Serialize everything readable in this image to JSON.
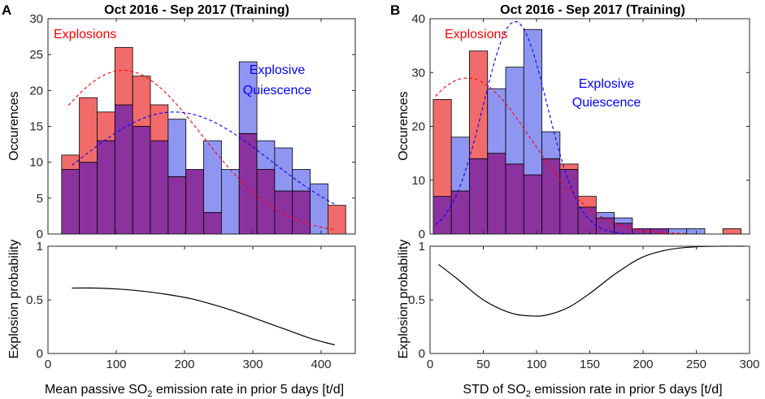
{
  "colors": {
    "explosions": "#ff0000",
    "quiescence": "#0000ff",
    "explosions_fill": "#f26b6b",
    "quiescence_fill": "#8f96f2",
    "overlap_fill": "#8b329f",
    "curve": "#000000"
  },
  "panels": [
    {
      "letter": "A",
      "title": "Oct 2016 - Sep 2017  (Training)",
      "xlabel_pre": "Mean passive SO",
      "xlabel_sub": "2",
      "xlabel_post": " emission rate in prior 5 days [t/d]",
      "ylabel_top": "Occurences",
      "ylabel_bottom": "Explosion probability",
      "legend_explosions": "Explosions",
      "legend_quiescence_1": "Explosive",
      "legend_quiescence_2": "Quiescence"
    },
    {
      "letter": "B",
      "title": "Oct 2016 - Sep 2017  (Training)",
      "xlabel_pre": "STD of SO",
      "xlabel_sub": "2",
      "xlabel_post": " emission rate in prior 5 days [t/d]",
      "ylabel_top": "Occurences",
      "ylabel_bottom": "Explosion probability",
      "legend_explosions": "Explosions",
      "legend_quiescence_1": "Explosive",
      "legend_quiescence_2": "Quiescence"
    }
  ],
  "chart_data": [
    {
      "type": "bar",
      "panel": "A",
      "title": "Oct 2016 - Sep 2017  (Training)",
      "xlabel": "Mean passive SO2 emission rate in prior 5 days [t/d]",
      "ylabel": "Occurences",
      "xlim": [
        0,
        450
      ],
      "ylim": [
        0,
        30
      ],
      "xticks": [
        0,
        100,
        200,
        300,
        400
      ],
      "yticks": [
        0,
        5,
        10,
        15,
        20,
        25,
        30
      ],
      "bin_edges": [
        20,
        46,
        72,
        98,
        124,
        150,
        176,
        202,
        228,
        254,
        280,
        306,
        332,
        358,
        384,
        410,
        436
      ],
      "series": [
        {
          "name": "Explosions",
          "values": [
            11,
            19,
            17,
            26,
            22,
            18,
            8,
            9,
            3,
            0,
            14,
            9,
            6,
            6,
            0,
            4
          ]
        },
        {
          "name": "Explosive Quiescence",
          "values": [
            9,
            10,
            13,
            18,
            15,
            13,
            16,
            9,
            13,
            9,
            24,
            13,
            12,
            9,
            7,
            0
          ]
        }
      ],
      "fits": [
        {
          "name": "Explosions",
          "mu": 110,
          "sigma": 115,
          "peak": 22.8,
          "x_range": [
            30,
            420
          ]
        },
        {
          "name": "Explosive Quiescence",
          "mu": 185,
          "sigma": 140,
          "peak": 17,
          "x_range": [
            35,
            420
          ]
        }
      ]
    },
    {
      "type": "line",
      "panel": "A",
      "ylabel": "Explosion probability",
      "xlim": [
        0,
        450
      ],
      "ylim": [
        0,
        1
      ],
      "yticks": [
        0,
        0.5,
        1
      ],
      "x": [
        35,
        70,
        105,
        140,
        175,
        210,
        245,
        280,
        315,
        350,
        385,
        420
      ],
      "y": [
        0.61,
        0.61,
        0.6,
        0.58,
        0.55,
        0.51,
        0.45,
        0.38,
        0.3,
        0.22,
        0.14,
        0.08
      ]
    },
    {
      "type": "bar",
      "panel": "B",
      "title": "Oct 2016 - Sep 2017  (Training)",
      "xlabel": "STD of SO2 emission rate in prior 5 days [t/d]",
      "ylabel": "Occurences",
      "xlim": [
        0,
        300
      ],
      "ylim": [
        0,
        40
      ],
      "xticks": [
        0,
        50,
        100,
        150,
        200,
        250,
        300
      ],
      "yticks": [
        0,
        10,
        20,
        30,
        40
      ],
      "bin_edges": [
        3,
        20,
        37,
        54,
        71,
        88,
        105,
        122,
        139,
        156,
        173,
        190,
        207,
        224,
        241,
        258,
        275,
        292
      ],
      "series": [
        {
          "name": "Explosions",
          "values": [
            25,
            8,
            34,
            15,
            13,
            11,
            14,
            13,
            7,
            3,
            2,
            1,
            1,
            0,
            0,
            0,
            1
          ]
        },
        {
          "name": "Explosive Quiescence",
          "values": [
            7,
            18,
            14,
            27,
            31,
            38,
            19,
            12,
            5,
            4,
            3,
            1,
            1,
            1,
            1,
            0,
            0
          ]
        }
      ],
      "fits": [
        {
          "name": "Explosions",
          "mu": 35,
          "sigma": 60,
          "peak": 29,
          "x_range": [
            5,
            240
          ]
        },
        {
          "name": "Explosive Quiescence",
          "mu": 80,
          "sigma": 30,
          "peak": 39.5,
          "x_range": [
            5,
            240
          ]
        }
      ]
    },
    {
      "type": "line",
      "panel": "B",
      "ylabel": "Explosion probability",
      "xlim": [
        0,
        300
      ],
      "ylim": [
        0,
        1
      ],
      "xticks": [
        0,
        50,
        100,
        150,
        200,
        250,
        300
      ],
      "yticks": [
        0,
        0.5,
        1
      ],
      "x": [
        8,
        25,
        50,
        75,
        95,
        110,
        130,
        150,
        175,
        200,
        225,
        250,
        275,
        295
      ],
      "y": [
        0.83,
        0.7,
        0.5,
        0.38,
        0.35,
        0.36,
        0.43,
        0.56,
        0.75,
        0.9,
        0.97,
        0.995,
        1.0,
        1.0
      ]
    }
  ]
}
